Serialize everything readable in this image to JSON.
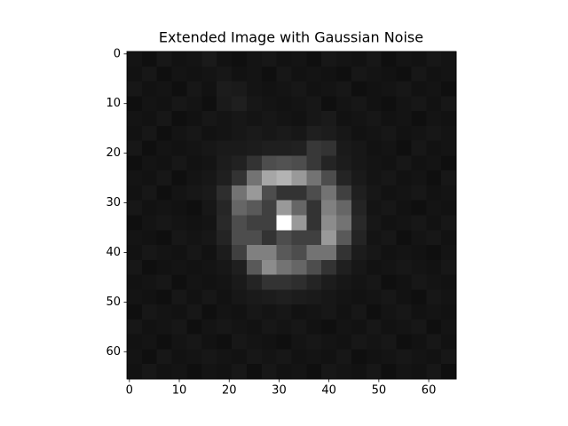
{
  "chart_data": {
    "type": "image",
    "title": "Extended Image with Gaussian Noise",
    "colormap": "gray",
    "clim": [
      0,
      1
    ],
    "xlim": [
      -0.5,
      65.5
    ],
    "ylim": [
      65.5,
      -0.5
    ],
    "xticks": [
      0,
      10,
      20,
      30,
      40,
      50,
      60
    ],
    "yticks": [
      0,
      10,
      20,
      30,
      40,
      50,
      60
    ],
    "z": [
      [
        0.08,
        0.06,
        0.09,
        0.07,
        0.08,
        0.1,
        0.07,
        0.06,
        0.08,
        0.09,
        0.07,
        0.08,
        0.06,
        0.09,
        0.08,
        0.07,
        0.09,
        0.06,
        0.08,
        0.07,
        0.09,
        0.08
      ],
      [
        0.07,
        0.09,
        0.06,
        0.08,
        0.07,
        0.08,
        0.09,
        0.07,
        0.08,
        0.06,
        0.09,
        0.07,
        0.08,
        0.07,
        0.06,
        0.09,
        0.08,
        0.07,
        0.06,
        0.09,
        0.07,
        0.08
      ],
      [
        0.09,
        0.07,
        0.08,
        0.06,
        0.09,
        0.07,
        0.11,
        0.1,
        0.08,
        0.07,
        0.08,
        0.09,
        0.07,
        0.08,
        0.09,
        0.06,
        0.07,
        0.08,
        0.09,
        0.07,
        0.08,
        0.06
      ],
      [
        0.06,
        0.08,
        0.07,
        0.09,
        0.08,
        0.06,
        0.1,
        0.12,
        0.09,
        0.08,
        0.07,
        0.08,
        0.09,
        0.06,
        0.08,
        0.09,
        0.07,
        0.06,
        0.08,
        0.09,
        0.07,
        0.09
      ],
      [
        0.08,
        0.07,
        0.09,
        0.06,
        0.07,
        0.09,
        0.08,
        0.09,
        0.08,
        0.09,
        0.08,
        0.07,
        0.09,
        0.1,
        0.07,
        0.08,
        0.09,
        0.07,
        0.08,
        0.06,
        0.08,
        0.07
      ],
      [
        0.07,
        0.09,
        0.06,
        0.08,
        0.09,
        0.07,
        0.08,
        0.09,
        0.1,
        0.09,
        0.1,
        0.09,
        0.12,
        0.11,
        0.09,
        0.07,
        0.08,
        0.09,
        0.07,
        0.08,
        0.09,
        0.08
      ],
      [
        0.09,
        0.06,
        0.08,
        0.07,
        0.08,
        0.09,
        0.1,
        0.1,
        0.11,
        0.12,
        0.12,
        0.13,
        0.22,
        0.2,
        0.1,
        0.09,
        0.07,
        0.08,
        0.06,
        0.09,
        0.07,
        0.08
      ],
      [
        0.06,
        0.08,
        0.07,
        0.09,
        0.07,
        0.08,
        0.11,
        0.13,
        0.2,
        0.3,
        0.32,
        0.3,
        0.22,
        0.14,
        0.11,
        0.09,
        0.08,
        0.07,
        0.09,
        0.07,
        0.08,
        0.06
      ],
      [
        0.08,
        0.07,
        0.09,
        0.06,
        0.08,
        0.09,
        0.12,
        0.2,
        0.45,
        0.65,
        0.7,
        0.6,
        0.45,
        0.3,
        0.14,
        0.1,
        0.08,
        0.09,
        0.07,
        0.08,
        0.06,
        0.09
      ],
      [
        0.07,
        0.09,
        0.06,
        0.08,
        0.09,
        0.1,
        0.18,
        0.45,
        0.6,
        0.3,
        0.2,
        0.2,
        0.3,
        0.45,
        0.25,
        0.12,
        0.09,
        0.07,
        0.08,
        0.09,
        0.07,
        0.08
      ],
      [
        0.09,
        0.07,
        0.08,
        0.07,
        0.06,
        0.09,
        0.15,
        0.4,
        0.35,
        0.25,
        0.6,
        0.4,
        0.2,
        0.5,
        0.4,
        0.14,
        0.08,
        0.09,
        0.07,
        0.06,
        0.08,
        0.07
      ],
      [
        0.06,
        0.08,
        0.09,
        0.08,
        0.07,
        0.08,
        0.16,
        0.3,
        0.25,
        0.25,
        1,
        0.6,
        0.2,
        0.55,
        0.45,
        0.16,
        0.09,
        0.07,
        0.08,
        0.09,
        0.07,
        0.09
      ],
      [
        0.08,
        0.07,
        0.06,
        0.09,
        0.08,
        0.09,
        0.14,
        0.3,
        0.3,
        0.2,
        0.3,
        0.25,
        0.25,
        0.6,
        0.35,
        0.14,
        0.08,
        0.09,
        0.06,
        0.08,
        0.09,
        0.07
      ],
      [
        0.07,
        0.09,
        0.08,
        0.07,
        0.09,
        0.07,
        0.11,
        0.25,
        0.5,
        0.5,
        0.35,
        0.3,
        0.45,
        0.45,
        0.2,
        0.11,
        0.09,
        0.07,
        0.08,
        0.07,
        0.06,
        0.08
      ],
      [
        0.09,
        0.06,
        0.07,
        0.08,
        0.07,
        0.08,
        0.09,
        0.12,
        0.35,
        0.55,
        0.45,
        0.4,
        0.3,
        0.2,
        0.12,
        0.09,
        0.07,
        0.08,
        0.09,
        0.08,
        0.07,
        0.09
      ],
      [
        0.07,
        0.08,
        0.09,
        0.06,
        0.08,
        0.07,
        0.08,
        0.1,
        0.14,
        0.2,
        0.2,
        0.18,
        0.14,
        0.11,
        0.09,
        0.08,
        0.09,
        0.06,
        0.07,
        0.09,
        0.08,
        0.07
      ],
      [
        0.08,
        0.07,
        0.06,
        0.09,
        0.07,
        0.09,
        0.07,
        0.09,
        0.1,
        0.11,
        0.12,
        0.11,
        0.1,
        0.09,
        0.08,
        0.07,
        0.08,
        0.09,
        0.07,
        0.06,
        0.09,
        0.08
      ],
      [
        0.06,
        0.09,
        0.08,
        0.07,
        0.09,
        0.06,
        0.08,
        0.07,
        0.09,
        0.08,
        0.09,
        0.07,
        0.08,
        0.09,
        0.07,
        0.09,
        0.06,
        0.08,
        0.09,
        0.07,
        0.08,
        0.07
      ],
      [
        0.09,
        0.07,
        0.08,
        0.09,
        0.06,
        0.08,
        0.09,
        0.08,
        0.07,
        0.09,
        0.08,
        0.09,
        0.07,
        0.06,
        0.08,
        0.07,
        0.09,
        0.07,
        0.08,
        0.09,
        0.06,
        0.08
      ],
      [
        0.07,
        0.08,
        0.06,
        0.08,
        0.09,
        0.07,
        0.06,
        0.09,
        0.08,
        0.07,
        0.06,
        0.08,
        0.09,
        0.08,
        0.07,
        0.09,
        0.08,
        0.09,
        0.06,
        0.07,
        0.09,
        0.07
      ],
      [
        0.08,
        0.06,
        0.09,
        0.07,
        0.08,
        0.09,
        0.08,
        0.07,
        0.09,
        0.08,
        0.09,
        0.07,
        0.08,
        0.07,
        0.09,
        0.06,
        0.07,
        0.08,
        0.09,
        0.08,
        0.07,
        0.09
      ],
      [
        0.07,
        0.09,
        0.07,
        0.08,
        0.06,
        0.08,
        0.07,
        0.09,
        0.06,
        0.09,
        0.07,
        0.08,
        0.06,
        0.09,
        0.08,
        0.07,
        0.09,
        0.06,
        0.08,
        0.07,
        0.09,
        0.06
      ]
    ]
  }
}
